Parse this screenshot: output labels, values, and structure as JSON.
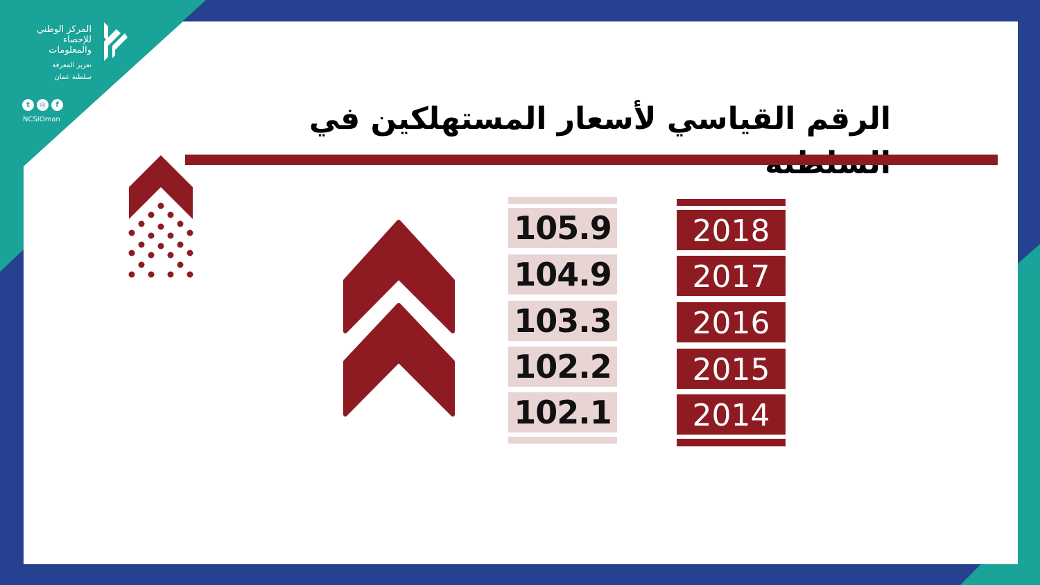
{
  "colors": {
    "navy": "#26418f",
    "teal": "#1aa398",
    "maroon": "#8e1b22",
    "pink": "#e9d4d4"
  },
  "logo": {
    "name": "المركز الوطني\nللإحصاء\nوالمعلومات",
    "tagline": "تعزيز المعرفة\nسلطنة عمان",
    "social_icons": [
      "twitter-icon",
      "instagram-icon",
      "facebook-icon"
    ],
    "handle": "NCSIOman"
  },
  "title": "الرقم القياسي لأسعار المستهلكين في السلطنة",
  "cpi": [
    {
      "year": "2018",
      "value": "105.9"
    },
    {
      "year": "2017",
      "value": "104.9"
    },
    {
      "year": "2016",
      "value": "103.3"
    },
    {
      "year": "2015",
      "value": "102.2"
    },
    {
      "year": "2014",
      "value": "102.1"
    }
  ]
}
